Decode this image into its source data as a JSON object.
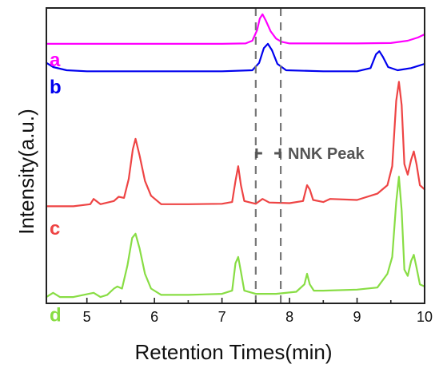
{
  "chart_data": {
    "type": "line",
    "xlabel": "Retention Times(min)",
    "ylabel": "Intensity(a.u.)",
    "xlim": [
      4.4,
      10.0
    ],
    "ylim": [
      0,
      14
    ],
    "xticks": [
      "5",
      "6",
      "7",
      "8",
      "9",
      "10"
    ],
    "grid": false,
    "legend": "none",
    "series": [
      {
        "name": "a",
        "color": "#ff00ff",
        "x": [
          4.4,
          5.0,
          6.0,
          7.0,
          7.35,
          7.45,
          7.52,
          7.56,
          7.6,
          7.65,
          7.72,
          7.8,
          7.88,
          8.0,
          8.5,
          9.0,
          9.5,
          9.75,
          9.9,
          10.0
        ],
        "y": [
          12.3,
          12.3,
          12.3,
          12.3,
          12.32,
          12.45,
          12.95,
          13.5,
          13.7,
          13.4,
          12.9,
          12.55,
          12.4,
          12.32,
          12.32,
          12.32,
          12.34,
          12.45,
          12.6,
          12.75
        ]
      },
      {
        "name": "b",
        "color": "#0000ee",
        "x": [
          4.4,
          4.5,
          4.7,
          5.0,
          6.0,
          7.0,
          7.45,
          7.55,
          7.62,
          7.68,
          7.74,
          7.82,
          7.95,
          8.5,
          9.0,
          9.2,
          9.28,
          9.33,
          9.38,
          9.46,
          9.6,
          9.8,
          10.0
        ],
        "y": [
          11.4,
          11.2,
          11.05,
          11.0,
          11.0,
          11.0,
          11.05,
          11.4,
          12.1,
          12.3,
          12.0,
          11.35,
          11.05,
          11.0,
          11.0,
          11.15,
          11.8,
          11.95,
          11.7,
          11.2,
          11.05,
          11.15,
          11.35
        ]
      },
      {
        "name": "c",
        "color": "#ee4444",
        "x": [
          4.4,
          4.8,
          5.05,
          5.1,
          5.2,
          5.4,
          5.47,
          5.55,
          5.62,
          5.68,
          5.72,
          5.78,
          5.86,
          5.95,
          6.1,
          6.5,
          7.0,
          7.15,
          7.2,
          7.24,
          7.28,
          7.33,
          7.5,
          7.6,
          7.7,
          8.0,
          8.2,
          8.26,
          8.3,
          8.35,
          8.5,
          8.6,
          9.0,
          9.3,
          9.45,
          9.52,
          9.58,
          9.62,
          9.66,
          9.7,
          9.75,
          9.8,
          9.84,
          9.88,
          9.93,
          10.0
        ],
        "y": [
          4.6,
          4.6,
          4.7,
          4.95,
          4.7,
          4.85,
          5.05,
          5.0,
          5.9,
          7.3,
          7.8,
          7.0,
          5.8,
          5.1,
          4.7,
          4.7,
          4.72,
          4.8,
          5.8,
          6.5,
          5.6,
          4.85,
          4.72,
          4.95,
          4.78,
          4.75,
          4.85,
          5.6,
          5.4,
          4.9,
          4.8,
          4.95,
          4.9,
          5.2,
          5.6,
          6.5,
          9.6,
          10.5,
          9.4,
          6.6,
          6.1,
          6.8,
          7.2,
          6.6,
          5.6,
          5.4
        ]
      },
      {
        "name": "d",
        "color": "#88dd44",
        "x": [
          4.4,
          4.5,
          4.6,
          4.8,
          5.1,
          5.2,
          5.3,
          5.4,
          5.45,
          5.52,
          5.6,
          5.67,
          5.72,
          5.78,
          5.86,
          5.95,
          6.1,
          6.5,
          7.0,
          7.15,
          7.2,
          7.24,
          7.28,
          7.33,
          7.5,
          7.8,
          8.1,
          8.22,
          8.26,
          8.3,
          8.36,
          8.5,
          9.0,
          9.3,
          9.45,
          9.52,
          9.58,
          9.62,
          9.66,
          9.7,
          9.75,
          9.8,
          9.84,
          9.88,
          9.93,
          10.0
        ],
        "y": [
          0.3,
          0.5,
          0.3,
          0.3,
          0.5,
          0.3,
          0.4,
          0.7,
          0.8,
          0.7,
          1.8,
          3.1,
          3.3,
          2.6,
          1.4,
          0.7,
          0.4,
          0.4,
          0.45,
          0.6,
          1.9,
          2.2,
          1.5,
          0.6,
          0.45,
          0.45,
          0.55,
          0.9,
          1.4,
          0.9,
          0.6,
          0.6,
          0.65,
          0.75,
          1.4,
          2.2,
          4.8,
          6.0,
          4.4,
          1.6,
          1.3,
          2.0,
          2.3,
          1.7,
          0.9,
          0.8
        ]
      }
    ],
    "series_labels": [
      "a",
      "b",
      "c",
      "d"
    ],
    "annotations": {
      "vlines": [
        7.5,
        7.87
      ],
      "peak_label": "NNK Peak"
    }
  }
}
